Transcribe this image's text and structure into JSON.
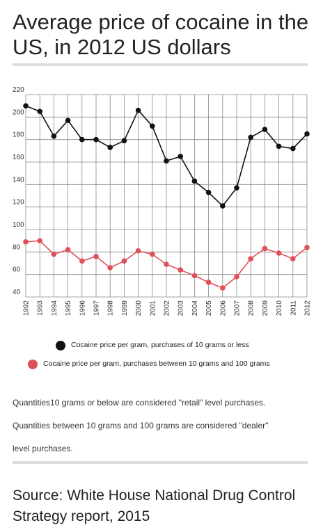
{
  "title": "Average price of cocaine in the US, in 2012 US dollars",
  "chart_data": {
    "type": "line",
    "title": "Average price of cocaine in the US, in 2012 US dollars",
    "xlabel": "",
    "ylabel": "",
    "x": [
      "1992",
      "1993",
      "1994",
      "1995",
      "1996",
      "1997",
      "1998",
      "1999",
      "2000",
      "2001",
      "2002",
      "2003",
      "2004",
      "2005",
      "2006",
      "2007",
      "2008",
      "2009",
      "2010",
      "2011",
      "2012"
    ],
    "ylim": [
      40,
      220
    ],
    "yticks": [
      40,
      60,
      80,
      100,
      120,
      140,
      160,
      180,
      200,
      220
    ],
    "grid": true,
    "legend_position": "bottom",
    "series": [
      {
        "name": "Cocaine price per gram, purchases of 10 grams or less",
        "color": "#111111",
        "values": [
          210,
          205,
          183,
          197,
          180,
          180,
          173,
          179,
          206,
          192,
          161,
          165,
          143,
          133,
          121,
          137,
          182,
          189,
          174,
          172,
          185
        ]
      },
      {
        "name": "Cocaine price per gram, purchases between 10 grams and 100 grams",
        "color": "#e0505a",
        "values": [
          89,
          90,
          78,
          82,
          72,
          76,
          66,
          72,
          81,
          78,
          69,
          64,
          59,
          53,
          48,
          58,
          74,
          83,
          79,
          74,
          84
        ]
      }
    ]
  },
  "notes": [
    "Quantities10 grams or below are considered \"retail\" level purchases.",
    "Quantities between 10 grams and 100 grams are considered \"dealer\"",
    "level purchases."
  ],
  "source": "Source: White House National Drug Control Strategy report, 2015",
  "colors": {
    "retail": "#111111",
    "dealer": "#e0505a",
    "grid": "#888888",
    "divider": "#dddddd"
  }
}
